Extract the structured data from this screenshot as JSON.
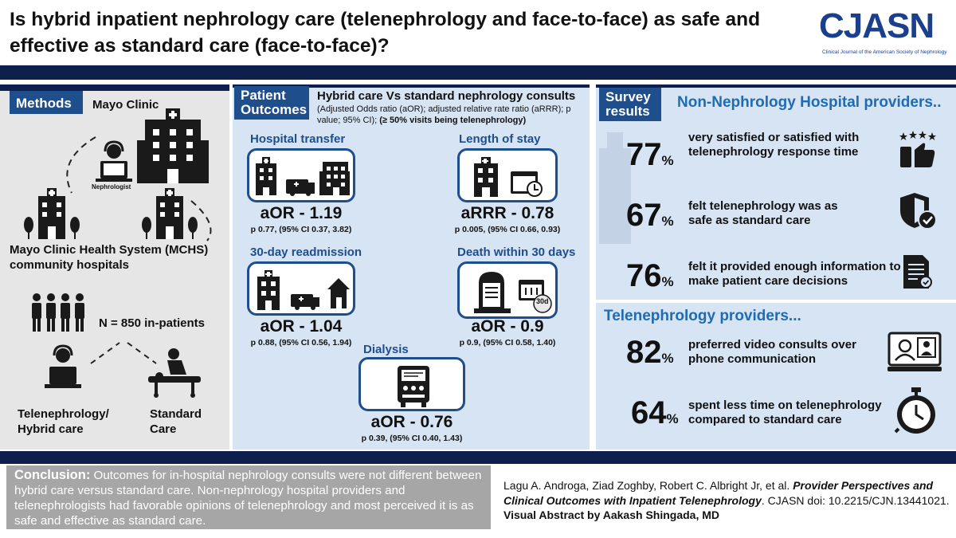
{
  "title": "Is hybrid  inpatient nephrology care (telenephrology and face-to-face) as safe and effective as standard care (face-to-face)?",
  "logo": {
    "name": "CJASN",
    "subtitle": "Clinical Journal of the American Society of Nephrology"
  },
  "methods": {
    "tab": "Methods",
    "mayo": "Mayo Clinic",
    "nephrologist": "Nephrologist",
    "mchs": "Mayo Clinic Health System (MCHS) community hospitals",
    "n": "N = 850 in-patients",
    "tele": "Telenephrology/ Hybrid care",
    "standard": "Standard Care"
  },
  "outcomes": {
    "tab": "Patient Outcomes",
    "heading": "Hybrid care Vs standard nephrology consults",
    "note": "(Adjusted Odds ratio (aOR); adjusted relative rate ratio (aRRR); p value; 95% CI);",
    "note_bold": "(≥ 50% visits being telenephrology)",
    "items": [
      {
        "label": "Hospital transfer",
        "value": "aOR - 1.19",
        "detail": "p 0.77, (95% CI 0.37, 3.82)"
      },
      {
        "label": "Length of stay",
        "value": "aRRR - 0.78",
        "detail": "p  0.005, (95% CI 0.66, 0.93)"
      },
      {
        "label": "30-day readmission",
        "value": "aOR - 1.04",
        "detail": "p 0.88, (95% CI 0.56, 1.94)"
      },
      {
        "label": "Death within 30 days",
        "value": "aOR - 0.9",
        "detail": "p 0.9, (95% CI 0.58, 1.40)",
        "icon_text": "30d"
      },
      {
        "label": "Dialysis",
        "value": "aOR - 0.76",
        "detail": "p 0.39, (95% CI 0.40, 1.43)"
      }
    ]
  },
  "survey": {
    "tab": "Survey results",
    "nonneph_heading": "Non-Nephrology Hospital providers..",
    "nonneph": [
      {
        "pct": "77",
        "unit": "%",
        "text": "very satisfied or satisfied with telenephrology response time"
      },
      {
        "pct": "67",
        "unit": "%",
        "text": "felt telenephrology was as safe as standard care"
      },
      {
        "pct": "76",
        "unit": "%",
        "text": "felt it provided enough information to make patient care decisions"
      }
    ],
    "tele_heading": "Telenephrology providers...",
    "tele": [
      {
        "pct": "82",
        "unit": "%",
        "text": "preferred video consults over phone communication"
      },
      {
        "pct": "64",
        "unit": "%",
        "text": "spent less time on telenephrology compared to standard care"
      }
    ]
  },
  "conclusion": {
    "label": "Conclusion:",
    "text": " Outcomes for in-hospital nephrology consults were not different between hybrid care versus standard care. Non-nephrology hospital providers and telenephrologists had favorable opinions of telenephrology and most perceived it is as safe and effective as standard care."
  },
  "citation": {
    "authors": "Lagu A. Androga, Ziad Zoghby, Robert C. Albright Jr, et al. ",
    "title": "Provider Perspectives and Clinical Outcomes with Inpatient Telenephrology",
    "journal": ". CJASN doi: 10.2215/CJN.13441021. ",
    "credit": "Visual Abstract by Aakash Shingada, MD"
  },
  "colors": {
    "navy": "#0e1f4e",
    "blue": "#1f4e8c",
    "lightblue": "#d6e4f4",
    "grey": "#a6a6a6"
  }
}
